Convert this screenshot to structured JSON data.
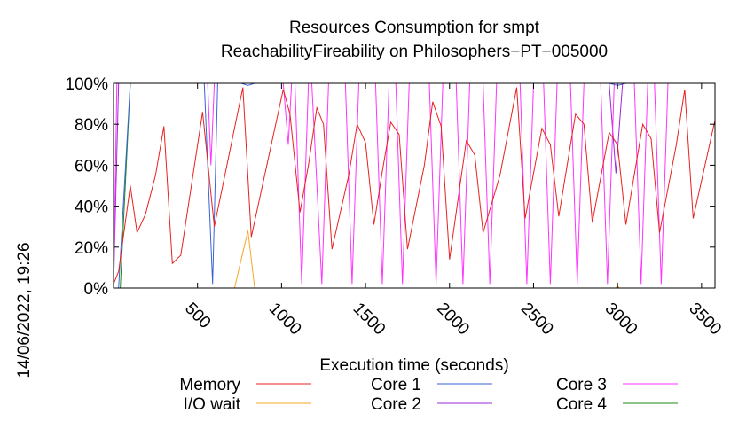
{
  "timestamp": "14/06/2022, 19:26",
  "chart_data": {
    "type": "line",
    "title": "Resources Consumption for smpt",
    "subtitle": "ReachabilityFireability on Philosophers−PT−005000",
    "xlabel": "Execution time (seconds)",
    "ylabel": "",
    "xlim": [
      0,
      3580
    ],
    "ylim": [
      0,
      100
    ],
    "x_ticks": [
      {
        "value": 500,
        "label": "500"
      },
      {
        "value": 1000,
        "label": "1000"
      },
      {
        "value": 1500,
        "label": "1500"
      },
      {
        "value": 2000,
        "label": "2000"
      },
      {
        "value": 2500,
        "label": "2500"
      },
      {
        "value": 3000,
        "label": "3000"
      },
      {
        "value": 3500,
        "label": "3500"
      }
    ],
    "y_ticks": [
      {
        "value": 0,
        "label": "0%"
      },
      {
        "value": 20,
        "label": "20%"
      },
      {
        "value": 40,
        "label": "40%"
      },
      {
        "value": 60,
        "label": "60%"
      },
      {
        "value": 80,
        "label": "80%"
      },
      {
        "value": 100,
        "label": "100%"
      }
    ],
    "grid": false,
    "legend_position": "bottom",
    "series": [
      {
        "name": "Memory",
        "color": "#e8201e",
        "points": [
          [
            0,
            2
          ],
          [
            30,
            8
          ],
          [
            100,
            50
          ],
          [
            140,
            27
          ],
          [
            190,
            36
          ],
          [
            250,
            55
          ],
          [
            300,
            79
          ],
          [
            350,
            12
          ],
          [
            400,
            16
          ],
          [
            530,
            86
          ],
          [
            600,
            30
          ],
          [
            770,
            98
          ],
          [
            820,
            25
          ],
          [
            1010,
            97
          ],
          [
            1050,
            85
          ],
          [
            1110,
            37
          ],
          [
            1160,
            60
          ],
          [
            1210,
            88
          ],
          [
            1250,
            80
          ],
          [
            1300,
            19
          ],
          [
            1400,
            55
          ],
          [
            1450,
            80
          ],
          [
            1500,
            71
          ],
          [
            1550,
            31
          ],
          [
            1600,
            57
          ],
          [
            1650,
            81
          ],
          [
            1700,
            75
          ],
          [
            1750,
            19
          ],
          [
            1850,
            60
          ],
          [
            1900,
            91
          ],
          [
            1950,
            79
          ],
          [
            2000,
            14
          ],
          [
            2100,
            72
          ],
          [
            2150,
            65
          ],
          [
            2200,
            27
          ],
          [
            2300,
            55
          ],
          [
            2400,
            98
          ],
          [
            2450,
            34
          ],
          [
            2550,
            78
          ],
          [
            2600,
            70
          ],
          [
            2650,
            35
          ],
          [
            2750,
            85
          ],
          [
            2800,
            80
          ],
          [
            2850,
            32
          ],
          [
            2950,
            76
          ],
          [
            3000,
            70
          ],
          [
            3050,
            31
          ],
          [
            3150,
            80
          ],
          [
            3200,
            73
          ],
          [
            3250,
            27
          ],
          [
            3350,
            70
          ],
          [
            3400,
            97
          ],
          [
            3450,
            34
          ],
          [
            3580,
            82
          ]
        ]
      },
      {
        "name": "I/O wait",
        "color": "#f5a623",
        "points": [
          [
            0,
            0
          ],
          [
            720,
            0
          ],
          [
            800,
            28
          ],
          [
            840,
            0
          ],
          [
            1000,
            0
          ],
          [
            2990,
            0
          ],
          [
            3000,
            1
          ],
          [
            3010,
            0
          ],
          [
            3580,
            0
          ]
        ]
      },
      {
        "name": "Core 1",
        "color": "#3a63d6",
        "points": [
          [
            0,
            0
          ],
          [
            30,
            0
          ],
          [
            100,
            100
          ],
          [
            540,
            100
          ],
          [
            590,
            2
          ],
          [
            620,
            100
          ],
          [
            760,
            100
          ],
          [
            800,
            99
          ],
          [
            840,
            100
          ],
          [
            2950,
            100
          ],
          [
            3000,
            99
          ],
          [
            3050,
            100
          ],
          [
            3580,
            100
          ]
        ]
      },
      {
        "name": "Core 2",
        "color": "#9a2ad6",
        "points": [
          [
            0,
            0
          ],
          [
            30,
            100
          ],
          [
            2950,
            100
          ],
          [
            2990,
            56
          ],
          [
            3030,
            100
          ],
          [
            3580,
            100
          ]
        ]
      },
      {
        "name": "Core 3",
        "color": "#ff33ff",
        "points": [
          [
            0,
            0
          ],
          [
            20,
            100
          ],
          [
            560,
            100
          ],
          [
            580,
            60
          ],
          [
            600,
            100
          ],
          [
            1010,
            100
          ],
          [
            1040,
            70
          ],
          [
            1060,
            100
          ],
          [
            1080,
            100
          ],
          [
            1120,
            2
          ],
          [
            1160,
            100
          ],
          [
            1180,
            100
          ],
          [
            1240,
            2
          ],
          [
            1280,
            100
          ],
          [
            1380,
            100
          ],
          [
            1420,
            2
          ],
          [
            1460,
            100
          ],
          [
            1560,
            100
          ],
          [
            1600,
            2
          ],
          [
            1640,
            100
          ],
          [
            1680,
            100
          ],
          [
            1720,
            2
          ],
          [
            1760,
            100
          ],
          [
            1880,
            100
          ],
          [
            1920,
            2
          ],
          [
            1960,
            100
          ],
          [
            2040,
            100
          ],
          [
            2080,
            2
          ],
          [
            2120,
            100
          ],
          [
            2200,
            100
          ],
          [
            2240,
            2
          ],
          [
            2280,
            100
          ],
          [
            2420,
            100
          ],
          [
            2460,
            2
          ],
          [
            2500,
            100
          ],
          [
            2560,
            100
          ],
          [
            2600,
            2
          ],
          [
            2640,
            100
          ],
          [
            2720,
            100
          ],
          [
            2760,
            2
          ],
          [
            2800,
            100
          ],
          [
            2900,
            100
          ],
          [
            2940,
            2
          ],
          [
            2980,
            100
          ],
          [
            3100,
            100
          ],
          [
            3140,
            2
          ],
          [
            3180,
            100
          ],
          [
            3220,
            100
          ],
          [
            3260,
            2
          ],
          [
            3300,
            100
          ],
          [
            3580,
            100
          ]
        ]
      },
      {
        "name": "Core 4",
        "color": "#1a8a1a",
        "points": [
          [
            0,
            0
          ],
          [
            40,
            0
          ],
          [
            100,
            100
          ],
          [
            3580,
            100
          ]
        ]
      }
    ]
  }
}
